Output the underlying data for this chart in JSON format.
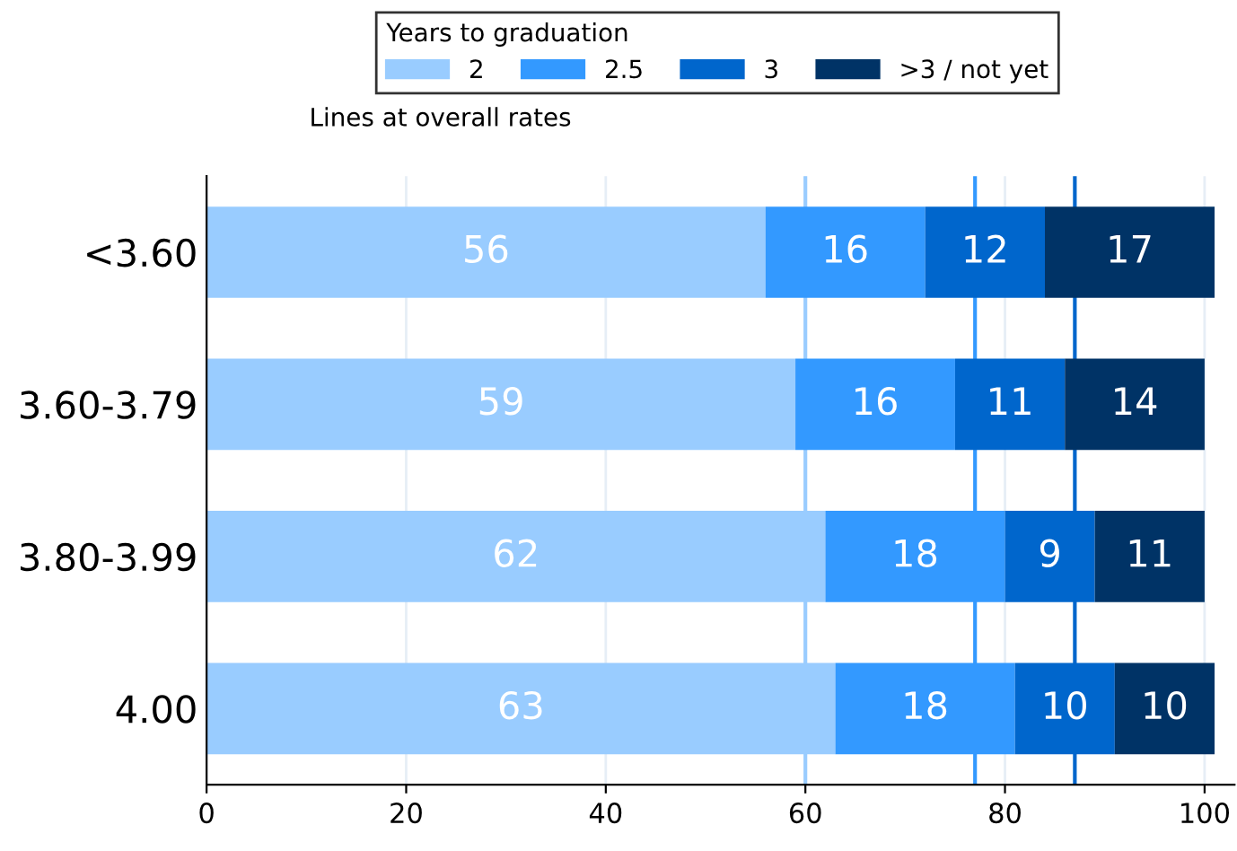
{
  "chart_data": {
    "type": "bar",
    "orientation": "horizontal",
    "stacked": true,
    "data_labels": true,
    "legend_title": "Years to graduation",
    "legend": "top",
    "annotations": [
      "Lines at overall rates"
    ],
    "categories": [
      "<3.60",
      "3.60-3.79",
      "3.80-3.99",
      "4.00"
    ],
    "series": [
      {
        "name": "2",
        "color": "#99ccff",
        "values": [
          56,
          59,
          62,
          63
        ]
      },
      {
        "name": "2.5",
        "color": "#3399ff",
        "values": [
          16,
          16,
          18,
          18
        ]
      },
      {
        "name": "3",
        "color": "#0066cc",
        "values": [
          12,
          11,
          9,
          10
        ]
      },
      {
        "name": ">3 / not yet",
        "color": "#003366",
        "values": [
          17,
          14,
          11,
          10
        ]
      }
    ],
    "xlim": [
      0,
      103
    ],
    "xticks": [
      0,
      20,
      40,
      60,
      80,
      100
    ],
    "grid": "x",
    "ref_lines": [
      {
        "axis": "x",
        "value": 60,
        "color": "#99ccff"
      },
      {
        "axis": "x",
        "value": 77,
        "color": "#3399ff"
      },
      {
        "axis": "x",
        "value": 87,
        "color": "#0066cc"
      }
    ]
  }
}
